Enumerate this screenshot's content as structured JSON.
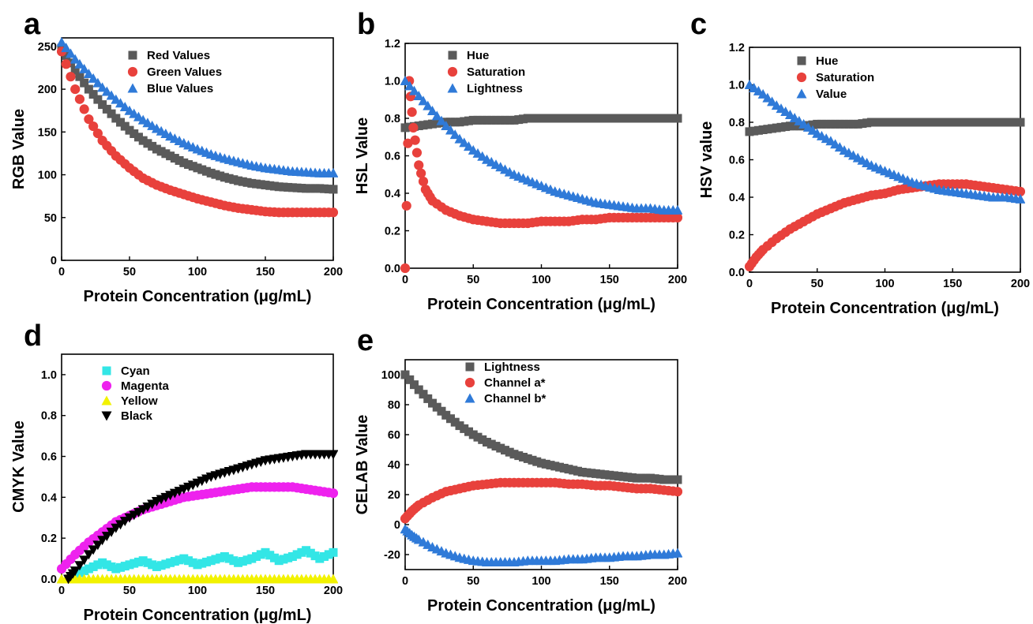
{
  "chart_data": [
    {
      "panel": "a",
      "type": "scatter",
      "xlabel": "Protein Concentration (μg/mL)",
      "ylabel": "RGB Value",
      "xlim": [
        0,
        200
      ],
      "ylim": [
        0,
        260
      ],
      "xticks": [
        "0",
        "50",
        "100",
        "150",
        "200"
      ],
      "yticks": [
        "0",
        "50",
        "100",
        "150",
        "200",
        "250"
      ],
      "legend_position": "top-center",
      "series": [
        {
          "name": "Red Values",
          "marker": "square",
          "color": "#5a5a5a",
          "x": [
            0,
            10,
            20,
            30,
            40,
            50,
            60,
            70,
            80,
            90,
            100,
            110,
            120,
            130,
            140,
            150,
            160,
            170,
            180,
            190,
            200
          ],
          "y": [
            248,
            222,
            200,
            182,
            166,
            152,
            140,
            130,
            122,
            114,
            108,
            102,
            97,
            93,
            90,
            88,
            86,
            85,
            84,
            84,
            83
          ]
        },
        {
          "name": "Green Values",
          "marker": "circle",
          "color": "#e8413c",
          "x": [
            0,
            10,
            20,
            30,
            40,
            50,
            60,
            70,
            80,
            90,
            100,
            110,
            120,
            130,
            140,
            150,
            160,
            170,
            180,
            190,
            200
          ],
          "y": [
            244,
            200,
            165,
            140,
            122,
            108,
            96,
            88,
            82,
            77,
            72,
            68,
            64,
            61,
            59,
            57,
            56,
            56,
            56,
            56,
            56
          ]
        },
        {
          "name": "Blue Values",
          "marker": "triangle",
          "color": "#2f7ad8",
          "x": [
            0,
            10,
            20,
            30,
            40,
            50,
            60,
            70,
            80,
            90,
            100,
            110,
            120,
            130,
            140,
            150,
            160,
            170,
            180,
            190,
            200
          ],
          "y": [
            255,
            235,
            218,
            202,
            188,
            175,
            164,
            154,
            145,
            137,
            130,
            124,
            119,
            115,
            111,
            108,
            106,
            104,
            103,
            102,
            102
          ]
        }
      ]
    },
    {
      "panel": "b",
      "type": "scatter",
      "xlabel": "Protein Concentration (μg/mL)",
      "ylabel": "HSL Value",
      "xlim": [
        0,
        200
      ],
      "ylim": [
        0,
        1.2
      ],
      "xticks": [
        "0",
        "50",
        "100",
        "150",
        "200"
      ],
      "yticks": [
        "0.0",
        "0.2",
        "0.4",
        "0.6",
        "0.8",
        "1.0",
        "1.2"
      ],
      "legend_position": "top-left",
      "series": [
        {
          "name": "Hue",
          "marker": "square",
          "color": "#5a5a5a",
          "x": [
            0,
            10,
            20,
            30,
            40,
            50,
            60,
            70,
            80,
            90,
            100,
            110,
            120,
            130,
            140,
            150,
            160,
            170,
            180,
            190,
            200
          ],
          "y": [
            0.75,
            0.76,
            0.77,
            0.78,
            0.78,
            0.79,
            0.79,
            0.79,
            0.79,
            0.8,
            0.8,
            0.8,
            0.8,
            0.8,
            0.8,
            0.8,
            0.8,
            0.8,
            0.8,
            0.8,
            0.8
          ]
        },
        {
          "name": "Saturation",
          "marker": "circle",
          "color": "#e8413c",
          "x": [
            0,
            3,
            6,
            10,
            15,
            20,
            30,
            40,
            50,
            60,
            70,
            80,
            90,
            100,
            110,
            120,
            130,
            140,
            150,
            160,
            170,
            180,
            190,
            200
          ],
          "y": [
            0.0,
            1.0,
            0.75,
            0.55,
            0.42,
            0.36,
            0.31,
            0.28,
            0.26,
            0.25,
            0.24,
            0.24,
            0.24,
            0.25,
            0.25,
            0.25,
            0.26,
            0.26,
            0.27,
            0.27,
            0.27,
            0.27,
            0.27,
            0.27
          ]
        },
        {
          "name": "Lightness",
          "marker": "triangle",
          "color": "#2f7ad8",
          "x": [
            0,
            10,
            20,
            30,
            40,
            50,
            60,
            70,
            80,
            90,
            100,
            110,
            120,
            130,
            140,
            150,
            160,
            170,
            180,
            190,
            200
          ],
          "y": [
            1.0,
            0.92,
            0.84,
            0.76,
            0.69,
            0.63,
            0.58,
            0.54,
            0.5,
            0.47,
            0.44,
            0.41,
            0.39,
            0.37,
            0.35,
            0.34,
            0.33,
            0.32,
            0.32,
            0.31,
            0.31
          ]
        }
      ]
    },
    {
      "panel": "c",
      "type": "scatter",
      "xlabel": "Protein Concentration (μg/mL)",
      "ylabel": "HSV value",
      "xlim": [
        0,
        200
      ],
      "ylim": [
        0,
        1.2
      ],
      "xticks": [
        "0",
        "50",
        "100",
        "150",
        "200"
      ],
      "yticks": [
        "0.0",
        "0.2",
        "0.4",
        "0.6",
        "0.8",
        "1.0",
        "1.2"
      ],
      "legend_position": "top-left",
      "series": [
        {
          "name": "Hue",
          "marker": "square",
          "color": "#5a5a5a",
          "x": [
            0,
            10,
            20,
            30,
            40,
            50,
            60,
            70,
            80,
            90,
            100,
            110,
            120,
            130,
            140,
            150,
            160,
            170,
            180,
            190,
            200
          ],
          "y": [
            0.75,
            0.76,
            0.77,
            0.78,
            0.78,
            0.79,
            0.79,
            0.79,
            0.79,
            0.8,
            0.8,
            0.8,
            0.8,
            0.8,
            0.8,
            0.8,
            0.8,
            0.8,
            0.8,
            0.8,
            0.8
          ]
        },
        {
          "name": "Saturation",
          "marker": "circle",
          "color": "#e8413c",
          "x": [
            0,
            5,
            10,
            20,
            30,
            40,
            50,
            60,
            70,
            80,
            90,
            100,
            110,
            120,
            130,
            140,
            150,
            160,
            170,
            180,
            190,
            200
          ],
          "y": [
            0.03,
            0.08,
            0.12,
            0.18,
            0.23,
            0.27,
            0.31,
            0.34,
            0.37,
            0.39,
            0.41,
            0.42,
            0.44,
            0.45,
            0.46,
            0.47,
            0.47,
            0.47,
            0.46,
            0.45,
            0.44,
            0.43
          ]
        },
        {
          "name": "Value",
          "marker": "triangle",
          "color": "#2f7ad8",
          "x": [
            0,
            10,
            20,
            30,
            40,
            50,
            60,
            70,
            80,
            90,
            100,
            110,
            120,
            130,
            140,
            150,
            160,
            170,
            180,
            190,
            200
          ],
          "y": [
            1.0,
            0.95,
            0.89,
            0.84,
            0.79,
            0.74,
            0.7,
            0.65,
            0.61,
            0.57,
            0.54,
            0.51,
            0.48,
            0.46,
            0.44,
            0.43,
            0.42,
            0.41,
            0.4,
            0.4,
            0.39
          ]
        }
      ]
    },
    {
      "panel": "d",
      "type": "scatter",
      "xlabel": "Protein Concentration (μg/mL)",
      "ylabel": "CMYK Value",
      "xlim": [
        0,
        200
      ],
      "ylim": [
        0,
        1.1
      ],
      "xticks": [
        "0",
        "50",
        "100",
        "150",
        "200"
      ],
      "yticks": [
        "0.0",
        "0.2",
        "0.4",
        "0.6",
        "0.8",
        "1.0"
      ],
      "legend_position": "top-left",
      "series": [
        {
          "name": "Cyan",
          "marker": "square",
          "color": "#33e6e6",
          "x": [
            10,
            20,
            30,
            40,
            50,
            60,
            70,
            80,
            90,
            100,
            110,
            120,
            130,
            140,
            150,
            160,
            170,
            180,
            190,
            200
          ],
          "y": [
            0.02,
            0.05,
            0.08,
            0.05,
            0.07,
            0.09,
            0.06,
            0.08,
            0.1,
            0.07,
            0.09,
            0.11,
            0.08,
            0.1,
            0.13,
            0.09,
            0.11,
            0.14,
            0.1,
            0.13
          ]
        },
        {
          "name": "Magenta",
          "marker": "circle",
          "color": "#ee22ee",
          "x": [
            0,
            10,
            20,
            30,
            40,
            50,
            60,
            70,
            80,
            90,
            100,
            110,
            120,
            130,
            140,
            150,
            160,
            170,
            180,
            190,
            200
          ],
          "y": [
            0.05,
            0.12,
            0.18,
            0.23,
            0.28,
            0.31,
            0.34,
            0.36,
            0.38,
            0.4,
            0.41,
            0.42,
            0.43,
            0.44,
            0.45,
            0.45,
            0.45,
            0.45,
            0.44,
            0.43,
            0.42
          ]
        },
        {
          "name": "Yellow",
          "marker": "triangle",
          "color": "#f2f200",
          "x": [
            0,
            10,
            20,
            30,
            40,
            50,
            60,
            70,
            80,
            90,
            100,
            110,
            120,
            130,
            140,
            150,
            160,
            170,
            180,
            190,
            200
          ],
          "y": [
            0,
            0,
            0,
            0,
            0,
            0,
            0,
            0,
            0,
            0,
            0,
            0,
            0,
            0,
            0,
            0,
            0,
            0,
            0,
            0,
            0
          ]
        },
        {
          "name": "Black",
          "marker": "triangle-down",
          "color": "#000000",
          "x": [
            5,
            10,
            20,
            30,
            40,
            50,
            60,
            70,
            80,
            90,
            100,
            110,
            120,
            130,
            140,
            150,
            160,
            170,
            180,
            190,
            200
          ],
          "y": [
            0.0,
            0.04,
            0.12,
            0.19,
            0.25,
            0.3,
            0.34,
            0.38,
            0.41,
            0.44,
            0.47,
            0.5,
            0.52,
            0.54,
            0.56,
            0.58,
            0.59,
            0.6,
            0.61,
            0.61,
            0.61
          ]
        }
      ]
    },
    {
      "panel": "e",
      "type": "scatter",
      "xlabel": "Protein Concentration (μg/mL)",
      "ylabel": "CELAB Value",
      "xlim": [
        0,
        200
      ],
      "ylim": [
        -30,
        110
      ],
      "xticks": [
        "0",
        "50",
        "100",
        "150",
        "200"
      ],
      "yticks": [
        "-20",
        "0",
        "20",
        "40",
        "60",
        "80",
        "100"
      ],
      "legend_position": "top-center",
      "series": [
        {
          "name": "Lightness",
          "marker": "square",
          "color": "#5a5a5a",
          "x": [
            0,
            10,
            20,
            30,
            40,
            50,
            60,
            70,
            80,
            90,
            100,
            110,
            120,
            130,
            140,
            150,
            160,
            170,
            180,
            190,
            200
          ],
          "y": [
            100,
            90,
            81,
            73,
            66,
            60,
            55,
            51,
            47,
            44,
            41,
            39,
            37,
            35,
            34,
            33,
            32,
            31,
            31,
            30,
            30
          ]
        },
        {
          "name": "Channel a*",
          "marker": "circle",
          "color": "#e8413c",
          "x": [
            0,
            5,
            10,
            20,
            30,
            40,
            50,
            60,
            70,
            80,
            90,
            100,
            110,
            120,
            130,
            140,
            150,
            160,
            170,
            180,
            190,
            200
          ],
          "y": [
            4,
            9,
            13,
            18,
            22,
            24,
            26,
            27,
            28,
            28,
            28,
            28,
            28,
            27,
            27,
            26,
            26,
            25,
            24,
            24,
            23,
            22
          ]
        },
        {
          "name": "Channel b*",
          "marker": "triangle",
          "color": "#2f7ad8",
          "x": [
            0,
            5,
            10,
            20,
            30,
            40,
            50,
            60,
            70,
            80,
            90,
            100,
            110,
            120,
            130,
            140,
            150,
            160,
            170,
            180,
            190,
            200
          ],
          "y": [
            -3,
            -7,
            -10,
            -15,
            -19,
            -22,
            -24,
            -25,
            -25,
            -25,
            -24,
            -24,
            -24,
            -23,
            -23,
            -22,
            -22,
            -21,
            -21,
            -20,
            -20,
            -19
          ]
        }
      ]
    }
  ]
}
